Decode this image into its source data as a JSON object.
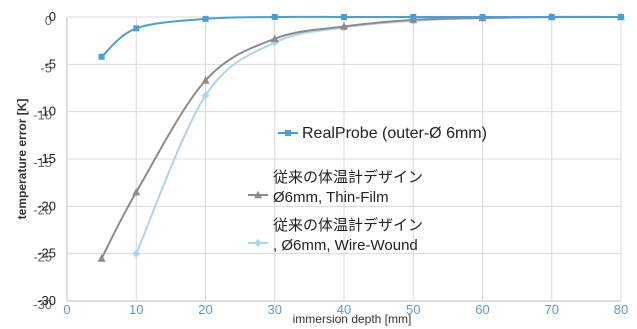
{
  "chart_data": {
    "type": "line",
    "xlabel": "immersion depth [mm]",
    "ylabel": "temperature error [K]",
    "xlim": [
      0,
      80
    ],
    "ylim": [
      -30,
      0
    ],
    "x_ticks": [
      0,
      10,
      20,
      30,
      40,
      50,
      60,
      70,
      80
    ],
    "x_tick_labels": [
      "0",
      "10",
      "20",
      "30",
      "40",
      "50",
      "60",
      "70",
      "80"
    ],
    "y_ticks": [
      0,
      -5,
      -10,
      -15,
      -20,
      -25,
      -30
    ],
    "y_tick_labels": [
      "0",
      "-5",
      "-10",
      "-15",
      "-20",
      "-25",
      "-30"
    ],
    "grid": true,
    "legend_position": "right",
    "series": [
      {
        "name": "RealProbe (outer-Ø 6mm)",
        "legend_lines": [
          "RealProbe (outer-Ø 6mm)"
        ],
        "color": "#4a9fd8",
        "marker": "square",
        "x": [
          5,
          10,
          20,
          30,
          40,
          50,
          60,
          70,
          80
        ],
        "y": [
          -4.2,
          -1.2,
          -0.2,
          0.0,
          0.0,
          0.0,
          0.0,
          0.0,
          0.0
        ]
      },
      {
        "name": "従来の体温計デザイン Ø6mm, Thin-Film",
        "legend_lines": [
          "従来の体温計デザイン",
          "Ø6mm, Thin-Film"
        ],
        "color": "#8c8c8c",
        "marker": "triangle",
        "x": [
          5,
          10,
          20,
          30,
          40,
          50,
          60,
          70,
          80
        ],
        "y": [
          -25.5,
          -18.5,
          -6.7,
          -2.3,
          -1.0,
          -0.3,
          -0.1,
          0.0,
          0.0
        ]
      },
      {
        "name": "従来の体温計デザイン , Ø6mm, Wire-Wound",
        "legend_lines": [
          "従来の体温計デザイン",
          ", Ø6mm, Wire-Wound"
        ],
        "color": "#aed4ee",
        "marker": "diamond",
        "x": [
          10,
          20,
          30,
          40,
          50,
          60,
          70,
          80
        ],
        "y": [
          -25.0,
          -8.3,
          -2.7,
          -1.1,
          -0.4,
          -0.1,
          0.0,
          0.0
        ]
      }
    ]
  }
}
